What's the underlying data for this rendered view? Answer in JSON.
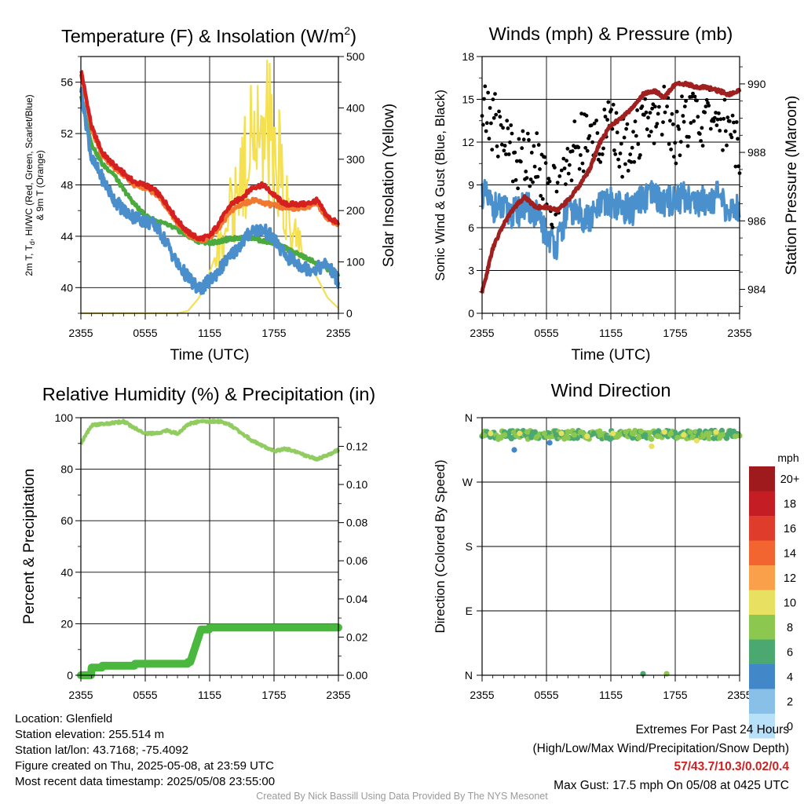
{
  "charts": {
    "temperature": {
      "title": "Temperature (F) & Insolation (W/m",
      "title_sup": "2",
      "title_close": ")",
      "ylabel_left_line1": "2m T, T",
      "ylabel_left_sub": "d",
      "ylabel_left_line1_rest": ", HI/WC (Red, Green, Scarlet/Blue)",
      "ylabel_left_line2": "& 9m T (Orange)",
      "ylabel_right": "Solar Insolation (Yellow)",
      "xlabel": "Time (UTC)",
      "xticks": [
        "2355",
        "0555",
        "1155",
        "1755",
        "2355"
      ],
      "yticks_left": [
        "40",
        "44",
        "48",
        "52",
        "56"
      ],
      "yticks_right": [
        "0",
        "100",
        "200",
        "300",
        "400",
        "500"
      ]
    },
    "winds": {
      "title": "Winds (mph) & Pressure (mb)",
      "ylabel_left": "Sonic Wind & Gust (Blue, Black)",
      "ylabel_right": "Station Pressure (Maroon)",
      "xlabel": "Time (UTC)",
      "xticks": [
        "2355",
        "0555",
        "1155",
        "1755",
        "2355"
      ],
      "yticks_left": [
        "0",
        "3",
        "6",
        "9",
        "12",
        "15",
        "18"
      ],
      "yticks_right": [
        "984",
        "986",
        "988",
        "990"
      ]
    },
    "humidity": {
      "title": "Relative Humidity (%) & Precipitation (in)",
      "ylabel_left": "Percent & Precipitation",
      "xticks": [
        "2355",
        "0555",
        "1155",
        "1755",
        "2355"
      ],
      "yticks_left": [
        "0",
        "20",
        "40",
        "60",
        "80",
        "100"
      ],
      "yticks_right": [
        "0.00",
        "0.02",
        "0.04",
        "0.06",
        "0.08",
        "0.10",
        "0.12"
      ]
    },
    "direction": {
      "title": "Wind Direction",
      "ylabel_left": "Direction (Colored By Speed)",
      "xticks": [
        "2355",
        "0555",
        "1155",
        "1755",
        "2355"
      ],
      "yticks_left": [
        "N",
        "E",
        "S",
        "W",
        "N"
      ],
      "legend_title": "mph",
      "legend_labels": [
        "20+",
        "18",
        "16",
        "14",
        "12",
        "10",
        "8",
        "6",
        "4",
        "2",
        "0"
      ],
      "legend_colors": [
        "#9e1a1c",
        "#c41e24",
        "#e03c2c",
        "#f26430",
        "#faa04a",
        "#e8e060",
        "#8cc850",
        "#4aa870",
        "#4288c8",
        "#88c0e8",
        "#b8e0f8"
      ]
    }
  },
  "chart_data": [
    {
      "type": "line",
      "title": "Temperature (F) & Insolation (W/m2)",
      "xlabel": "Time (UTC)",
      "ylabel": "2m T, Td, HI/WC (Red, Green, Scarlet/Blue) & 9m T (Orange)",
      "y2label": "Solar Insolation (Yellow)",
      "x_hours": [
        0,
        1,
        2,
        3,
        4,
        5,
        6,
        7,
        8,
        9,
        10,
        11,
        12,
        13,
        14,
        15,
        16,
        17,
        18,
        19,
        20,
        21,
        22,
        23,
        24
      ],
      "xlim": [
        0,
        24
      ],
      "ylim": [
        38,
        58
      ],
      "y2lim": [
        0,
        500
      ],
      "series": [
        {
          "name": "2m T",
          "color": "#d62020",
          "axis": "left",
          "values": [
            57,
            52.5,
            50.5,
            49.6,
            48.9,
            48.2,
            48.0,
            47.5,
            46.5,
            45.2,
            44.3,
            43.8,
            44.0,
            45.2,
            46.5,
            47.0,
            47.8,
            48.0,
            47.2,
            46.5,
            46.5,
            46.5,
            46.8,
            45.5,
            45.0
          ]
        },
        {
          "name": "9m T",
          "color": "#f07830",
          "axis": "left",
          "values": [
            56.8,
            52.3,
            50.3,
            49.4,
            48.7,
            48.0,
            47.8,
            47.3,
            46.3,
            45.0,
            44.1,
            43.7,
            43.9,
            44.8,
            46.0,
            46.5,
            46.8,
            46.6,
            46.4,
            46.2,
            46.2,
            46.3,
            46.5,
            45.4,
            44.9
          ]
        },
        {
          "name": "Td",
          "color": "#4aaa3e",
          "axis": "left",
          "values": [
            55.0,
            51.2,
            49.6,
            48.9,
            47.6,
            46.5,
            45.6,
            45.2,
            44.9,
            44.5,
            44.0,
            43.6,
            43.5,
            43.6,
            43.8,
            43.9,
            43.9,
            43.6,
            43.5,
            43.1,
            42.7,
            42.3,
            41.9,
            41.4,
            41.0
          ]
        },
        {
          "name": "HI/WC",
          "color": "#4a8ecc",
          "axis": "left",
          "values": [
            55.5,
            50.0,
            48.5,
            47.0,
            46.0,
            45.5,
            45.2,
            44.8,
            43.5,
            41.8,
            40.8,
            39.8,
            40.5,
            41.5,
            42.5,
            43.5,
            44.5,
            44.5,
            43.8,
            42.5,
            42.0,
            41.5,
            41.5,
            41.8,
            40.5
          ]
        },
        {
          "name": "Solar Insolation",
          "color": "#f4e050",
          "axis": "right",
          "values": [
            0,
            0,
            0,
            0,
            0,
            0,
            0,
            0,
            0,
            0,
            5,
            30,
            80,
            140,
            220,
            290,
            360,
            430,
            360,
            250,
            150,
            100,
            70,
            30,
            10
          ]
        }
      ]
    },
    {
      "type": "scatter",
      "title": "Winds (mph) & Pressure (mb)",
      "xlabel": "Time (UTC)",
      "ylabel": "Sonic Wind & Gust (Blue, Black)",
      "y2label": "Station Pressure (Maroon)",
      "x_hours": [
        0,
        1,
        2,
        3,
        4,
        5,
        6,
        7,
        8,
        9,
        10,
        11,
        12,
        13,
        14,
        15,
        16,
        17,
        18,
        19,
        20,
        21,
        22,
        23,
        24
      ],
      "xlim": [
        0,
        24
      ],
      "ylim": [
        0,
        18
      ],
      "y2lim": [
        983.3,
        990.8
      ],
      "series": [
        {
          "name": "Sonic Wind",
          "color": "#4a90cc",
          "axis": "left",
          "values": [
            8.5,
            7.5,
            7.2,
            7.0,
            7.5,
            7.0,
            5.5,
            4.8,
            7.2,
            7.0,
            6.5,
            7.5,
            7.8,
            7.5,
            7.2,
            8.0,
            8.2,
            7.8,
            8.0,
            8.2,
            7.8,
            8.0,
            8.2,
            7.0,
            7.5
          ]
        },
        {
          "name": "Gust",
          "color": "#000000",
          "axis": "left",
          "values": [
            14.0,
            13.5,
            12.5,
            11.0,
            10.8,
            11.5,
            8.5,
            8.0,
            11.0,
            11.8,
            12.0,
            12.5,
            13.0,
            11.5,
            12.5,
            12.8,
            13.5,
            14.5,
            12.5,
            13.5,
            13.8,
            13.5,
            14.0,
            13.0,
            12.0
          ]
        },
        {
          "name": "Station Pressure",
          "color": "#a02020",
          "axis": "right",
          "values": [
            983.9,
            985.2,
            985.9,
            986.4,
            986.7,
            986.4,
            986.4,
            986.3,
            986.6,
            987.0,
            987.5,
            988.3,
            988.8,
            989.0,
            989.3,
            989.7,
            989.8,
            989.6,
            990.0,
            990.0,
            989.9,
            989.9,
            989.8,
            989.7,
            989.8
          ]
        }
      ]
    },
    {
      "type": "line",
      "title": "Relative Humidity (%) & Precipitation (in)",
      "ylabel": "Percent & Precipitation",
      "x_hours": [
        0,
        1,
        2,
        3,
        4,
        5,
        6,
        7,
        8,
        9,
        10,
        11,
        12,
        13,
        14,
        15,
        16,
        17,
        18,
        19,
        20,
        21,
        22,
        23,
        24
      ],
      "xlim": [
        0,
        24
      ],
      "ylim": [
        0,
        100
      ],
      "y2lim": [
        0,
        0.135
      ],
      "series": [
        {
          "name": "Relative Humidity",
          "color": "#90cc60",
          "axis": "left",
          "values": [
            90,
            97,
            97.5,
            98,
            98.5,
            96,
            94,
            93.8,
            95,
            93.8,
            97.5,
            98.5,
            98.5,
            98.5,
            97,
            94,
            91,
            89,
            87,
            88,
            87,
            85,
            84,
            85.5,
            87.5
          ]
        },
        {
          "name": "Precipitation",
          "color": "#4ab83e",
          "axis": "right",
          "values": [
            0,
            0.004,
            0.005,
            0.005,
            0.005,
            0.006,
            0.006,
            0.006,
            0.006,
            0.006,
            0.007,
            0.024,
            0.025,
            0.025,
            0.025,
            0.025,
            0.025,
            0.025,
            0.025,
            0.025,
            0.025,
            0.025,
            0.025,
            0.025,
            0.025
          ]
        }
      ]
    },
    {
      "type": "scatter",
      "title": "Wind Direction",
      "ylabel": "Direction (Colored By Speed)",
      "xlim": [
        0,
        24
      ],
      "ylim": [
        0,
        360
      ],
      "colorbar_units": "mph",
      "series": [
        {
          "name": "Wind Direction",
          "x_hours": [
            0.2,
            0.8,
            1.5,
            2.1,
            2.7,
            3.0,
            3.5,
            4.2,
            4.6,
            5.1,
            5.8,
            6.3,
            6.9,
            7.4,
            8.0,
            8.6,
            9.2,
            9.8,
            10.4,
            11.0,
            11.6,
            12.2,
            12.8,
            13.4,
            14.0,
            14.6,
            15.2,
            15.8,
            16.4,
            17.0,
            17.6,
            18.2,
            18.8,
            19.4,
            20.0,
            20.6,
            21.2,
            21.8,
            22.4,
            23.0,
            23.6,
            15.0,
            17.2
          ],
          "directions": [
            335,
            338,
            330,
            336,
            332,
            315,
            338,
            340,
            335,
            333,
            338,
            325,
            336,
            338,
            332,
            336,
            340,
            334,
            338,
            336,
            332,
            338,
            336,
            340,
            338,
            332,
            336,
            320,
            334,
            340,
            338,
            332,
            336,
            340,
            328,
            334,
            338,
            340,
            336,
            338,
            334,
            2,
            2
          ],
          "speeds": [
            8,
            9,
            7,
            8,
            5,
            4,
            9,
            8,
            5,
            7,
            8,
            4,
            6,
            9,
            8,
            7,
            8,
            9,
            5,
            8,
            6,
            9,
            8,
            8,
            7,
            8,
            6,
            10,
            8,
            9,
            7,
            8,
            9,
            8,
            10,
            8,
            7,
            9,
            8,
            6,
            8,
            6,
            8
          ]
        }
      ]
    }
  ],
  "footer": {
    "location": "Location: Glenfield",
    "elevation": "Station elevation: 255.514 m",
    "latlon": "Station lat/lon: 43.7168; -75.4092",
    "created": "Figure created on Thu, 2025-05-08, at 23:59 UTC",
    "recent": "Most recent data timestamp: 2025/05/08 23:55:00",
    "extremes_title": "Extremes For Past 24 Hours",
    "extremes_legend": "(High/Low/Max Wind/Precipitation/Snow Depth)",
    "extremes_values": "57/43.7/10.3/0.02/0.4",
    "max_gust": "Max Gust: 17.5 mph On 05/08 at 0425 UTC",
    "credit": "Created By Nick Bassill Using Data Provided By The NYS Mesonet"
  }
}
